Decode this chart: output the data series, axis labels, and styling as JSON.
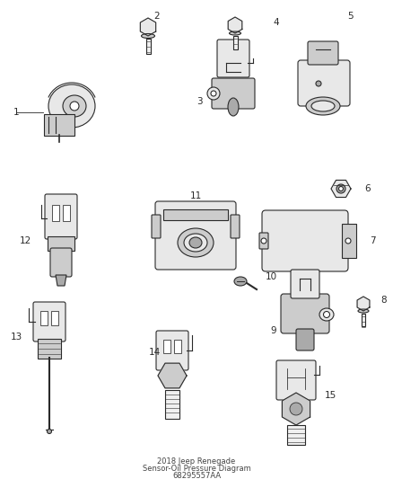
{
  "title": "2018 Jeep Renegade",
  "subtitle": "Sensor-Oil Pressure Diagram",
  "part_number": "68295557AA",
  "background_color": "#ffffff",
  "line_color": "#2a2a2a",
  "fill_light": "#e8e8e8",
  "fill_mid": "#cccccc",
  "fill_dark": "#aaaaaa",
  "label_color": "#111111",
  "fig_width": 4.38,
  "fig_height": 5.33,
  "dpi": 100
}
